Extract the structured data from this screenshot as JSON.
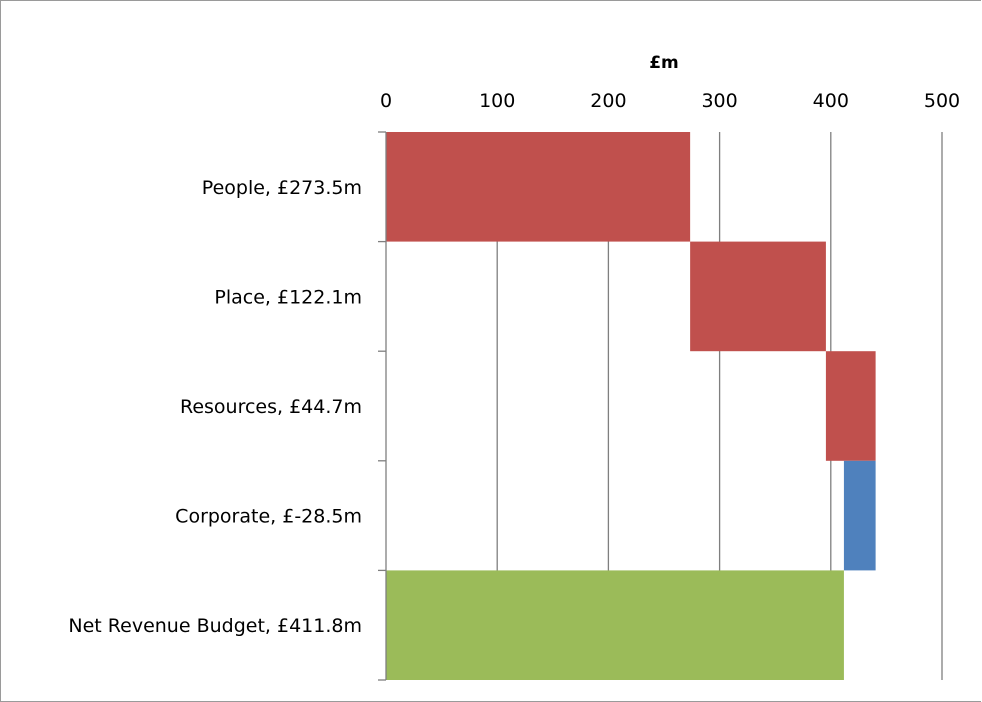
{
  "chart_data": {
    "type": "bar",
    "variant": "waterfall-horizontal",
    "xlabel": "£m",
    "xaxis_position": "top",
    "xlim": [
      0,
      500
    ],
    "xticks": [
      0,
      100,
      200,
      300,
      400,
      500
    ],
    "grid": true,
    "legend": "none",
    "categories": [
      "People, £273.5m",
      "Place, £122.1m",
      "Resources, £44.7m",
      "Corporate, £-28.5m",
      "Net Revenue Budget, £411.8m"
    ],
    "bars": [
      {
        "start": 0,
        "end": 273.5,
        "value": 273.5,
        "color": "#c0504d"
      },
      {
        "start": 273.5,
        "end": 395.6,
        "value": 122.1,
        "color": "#c0504d"
      },
      {
        "start": 395.6,
        "end": 440.3,
        "value": 44.7,
        "color": "#c0504d"
      },
      {
        "start": 411.8,
        "end": 440.3,
        "value": -28.5,
        "color": "#4f81bd"
      },
      {
        "start": 0,
        "end": 411.8,
        "value": 411.8,
        "color": "#9bbb59"
      }
    ]
  }
}
